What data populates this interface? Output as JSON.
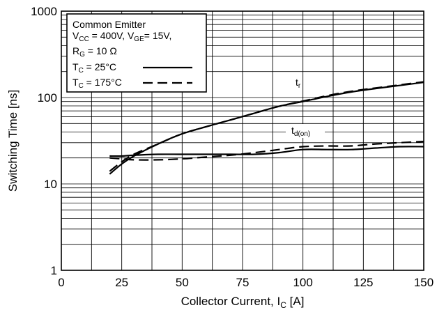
{
  "chart_data": {
    "type": "line",
    "x_scale": "linear",
    "y_scale": "log",
    "xlim": [
      0,
      150
    ],
    "ylim": [
      1,
      1000
    ],
    "x_ticks": [
      "0",
      "25",
      "50",
      "75",
      "100",
      "125",
      "150"
    ],
    "y_ticks": [
      "1",
      "10",
      "100",
      "1000"
    ],
    "grid": true,
    "xlabel": {
      "main": "Collector Current, I",
      "sub": "C",
      "unit": " [A]"
    },
    "ylabel": "Switching Time [ns]",
    "legend": {
      "position": "top-left",
      "line1": "Common Emitter",
      "line2": {
        "a": "V",
        "a_sub": "CC",
        "a_val": " = 400V, ",
        "b": "V",
        "b_sub": "GE",
        "b_val": "= 15V,"
      },
      "line3": {
        "a": "R",
        "a_sub": "G",
        "a_val": " = 10 Ω"
      },
      "entries": [
        {
          "prefix": "T",
          "sub": "C",
          "text": " = 25°C",
          "style": "solid"
        },
        {
          "prefix": "T",
          "sub": "C",
          "text": " = 175°C",
          "style": "dashed"
        }
      ]
    },
    "curve_labels": [
      {
        "main": "t",
        "sub": "r"
      },
      {
        "main": "t",
        "sub": "d(on)"
      }
    ],
    "series": [
      {
        "curve": "tr",
        "tc": "25°C",
        "style": "solid",
        "x": [
          20,
          25,
          30,
          40,
          50,
          60,
          70,
          80,
          90,
          100,
          110,
          120,
          130,
          140,
          150
        ],
        "y": [
          13,
          17,
          21,
          29,
          38,
          46,
          55,
          66,
          79,
          90,
          103,
          116,
          127,
          138,
          150
        ]
      },
      {
        "curve": "tr",
        "tc": "175°C",
        "style": "dashed",
        "x": [
          20,
          25,
          30,
          40,
          50,
          60,
          70,
          80,
          90,
          100,
          110,
          120,
          130,
          140,
          150
        ],
        "y": [
          14,
          18,
          22,
          29,
          38,
          46,
          55,
          66,
          79,
          91,
          105,
          118,
          129,
          140,
          152
        ]
      },
      {
        "curve": "td(on)",
        "tc": "25°C",
        "style": "solid",
        "x": [
          20,
          25,
          30,
          40,
          50,
          60,
          70,
          80,
          90,
          100,
          110,
          120,
          130,
          140,
          150
        ],
        "y": [
          21,
          21,
          21.5,
          22,
          22,
          22,
          22,
          22,
          23,
          25,
          25,
          25,
          26,
          27,
          27
        ]
      },
      {
        "curve": "td(on)",
        "tc": "175°C",
        "style": "dashed",
        "x": [
          20,
          25,
          30,
          40,
          50,
          60,
          70,
          80,
          90,
          100,
          110,
          120,
          130,
          140,
          150
        ],
        "y": [
          20,
          19.5,
          19,
          19,
          19.5,
          20.5,
          21.5,
          23,
          25,
          27,
          27.5,
          27.5,
          29,
          30,
          31
        ]
      }
    ]
  }
}
